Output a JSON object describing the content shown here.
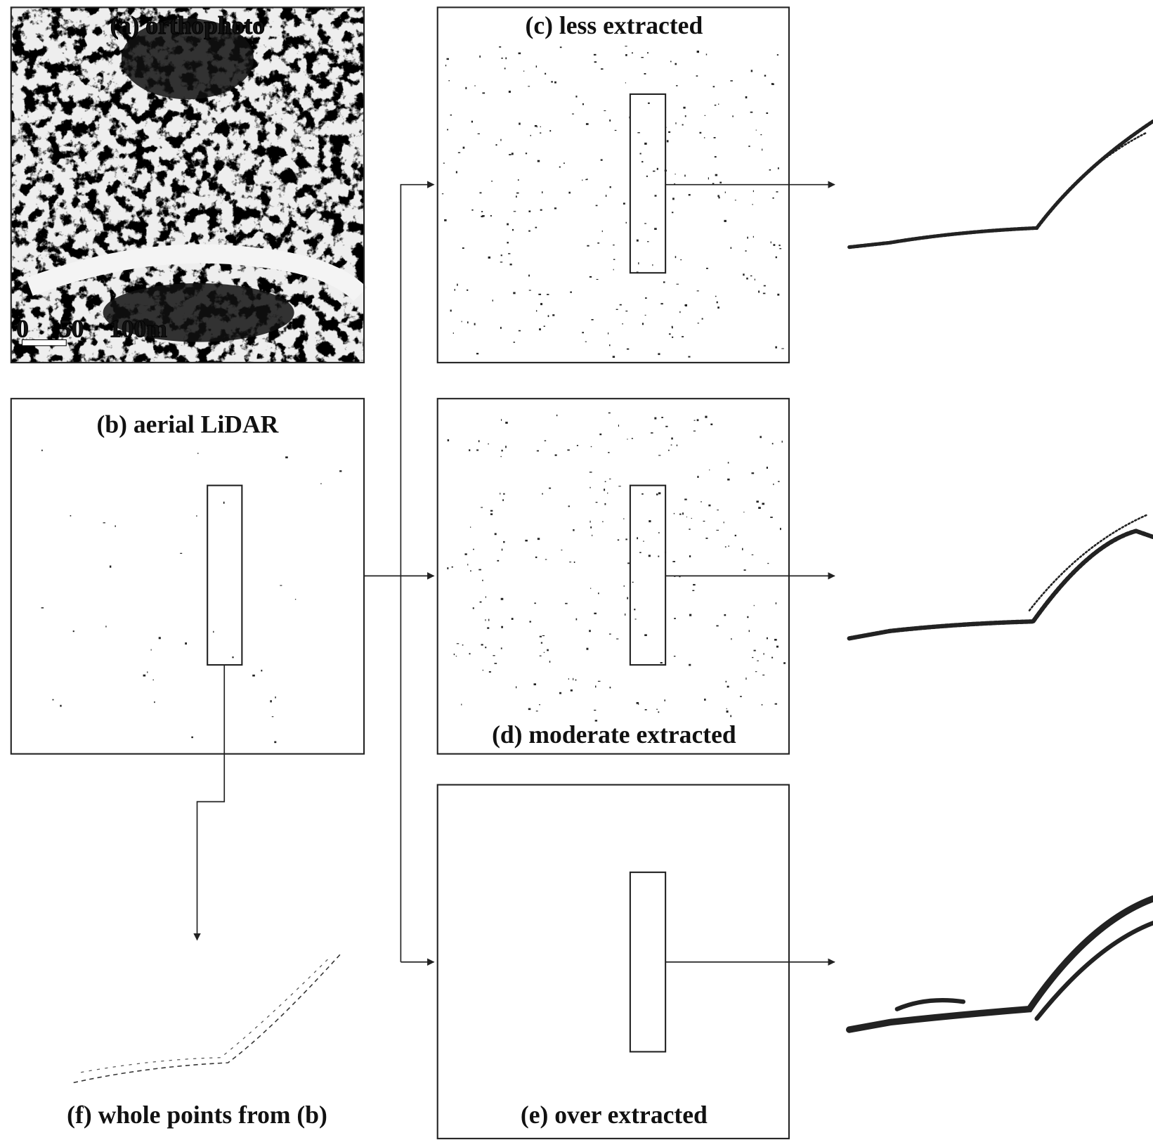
{
  "panels": [
    {
      "title": "(a) orthophoto"
    },
    {
      "title": "(b) aerial LiDAR"
    },
    {
      "title": "(c) less extracted"
    },
    {
      "title": "(d) moderate extracted"
    },
    {
      "title": "(e) over extracted"
    },
    {
      "title": "(f) whole points from (b)"
    }
  ],
  "scale_bar": [
    "0",
    "50",
    "100m"
  ]
}
